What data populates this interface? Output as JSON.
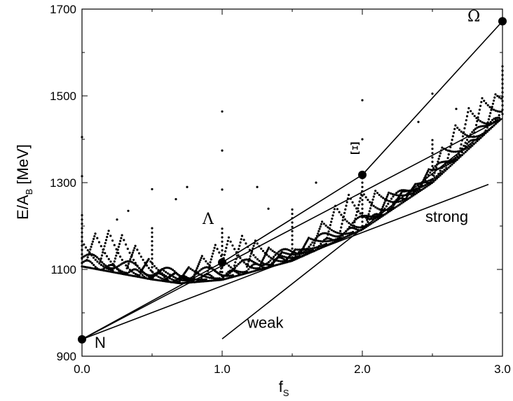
{
  "chart_data": {
    "type": "scatter",
    "xlabel": {
      "main": "f",
      "sub": "S"
    },
    "ylabel": {
      "main": "E/A",
      "sub": "B",
      "unit": " [MeV]"
    },
    "xlim": [
      0.0,
      3.0
    ],
    "ylim": [
      900,
      1700
    ],
    "x_ticks": [
      "0.0",
      "1.0",
      "2.0",
      "3.0"
    ],
    "y_ticks": [
      "900",
      "1100",
      "1300",
      "1500",
      "1700"
    ],
    "points_labeled": [
      {
        "name": "N",
        "x": 0.0,
        "y": 939
      },
      {
        "name": "Λ",
        "x": 1.0,
        "y": 1116
      },
      {
        "name": "Ξ",
        "x": 2.0,
        "y": 1318
      },
      {
        "name": "Ω",
        "x": 3.0,
        "y": 1672
      }
    ],
    "lines": [
      {
        "name": "baryon-connector",
        "points": [
          [
            0.0,
            939
          ],
          [
            1.0,
            1116
          ],
          [
            2.0,
            1318
          ],
          [
            3.0,
            1672
          ]
        ]
      },
      {
        "name": "N-tangent",
        "points": [
          [
            0.0,
            939
          ],
          [
            3.0,
            1448
          ]
        ]
      },
      {
        "name": "strong",
        "points": [
          [
            0.0,
            939
          ],
          [
            2.9,
            1296
          ]
        ]
      },
      {
        "name": "weak",
        "points": [
          [
            1.0,
            940
          ],
          [
            3.0,
            1448
          ]
        ]
      }
    ],
    "annotations": [
      {
        "text": "strong",
        "x": 2.45,
        "y": 1210
      },
      {
        "text": "weak",
        "x": 1.18,
        "y": 965
      }
    ],
    "scatter_model": {
      "envelope_min": [
        [
          0.0,
          1105
        ],
        [
          0.5,
          1075
        ],
        [
          0.7,
          1066
        ],
        [
          1.0,
          1074
        ],
        [
          1.5,
          1118
        ],
        [
          2.0,
          1190
        ],
        [
          2.5,
          1298
        ],
        [
          3.0,
          1448
        ]
      ],
      "branch_count": 32,
      "note_visible": false
    }
  }
}
